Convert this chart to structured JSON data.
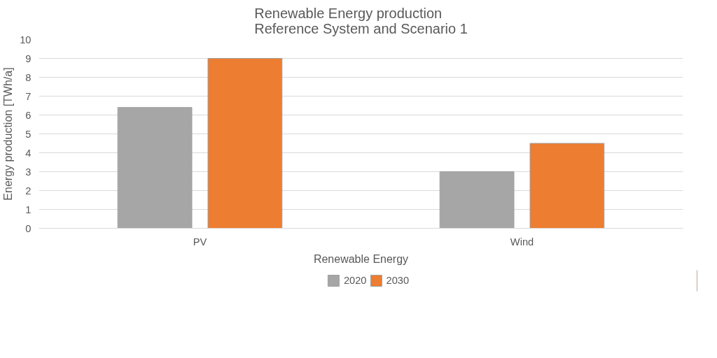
{
  "chart_data": {
    "type": "bar",
    "title": "Renewable Energy production\nReference System and Scenario 1",
    "xlabel": "Renewable Energy",
    "ylabel": "Energy production [TWh/a]",
    "categories": [
      "PV",
      "Wind"
    ],
    "series": [
      {
        "name": "2020",
        "color": "#a6a6a6",
        "values": [
          6.4,
          3.0
        ]
      },
      {
        "name": "2030",
        "color": "#ed7d31",
        "values": [
          9.0,
          4.5
        ]
      }
    ],
    "ylim": [
      0,
      10
    ],
    "yticks": [
      0,
      1,
      2,
      3,
      4,
      5,
      6,
      7,
      8,
      9,
      10
    ],
    "grid": "y",
    "legend": "bottom"
  }
}
